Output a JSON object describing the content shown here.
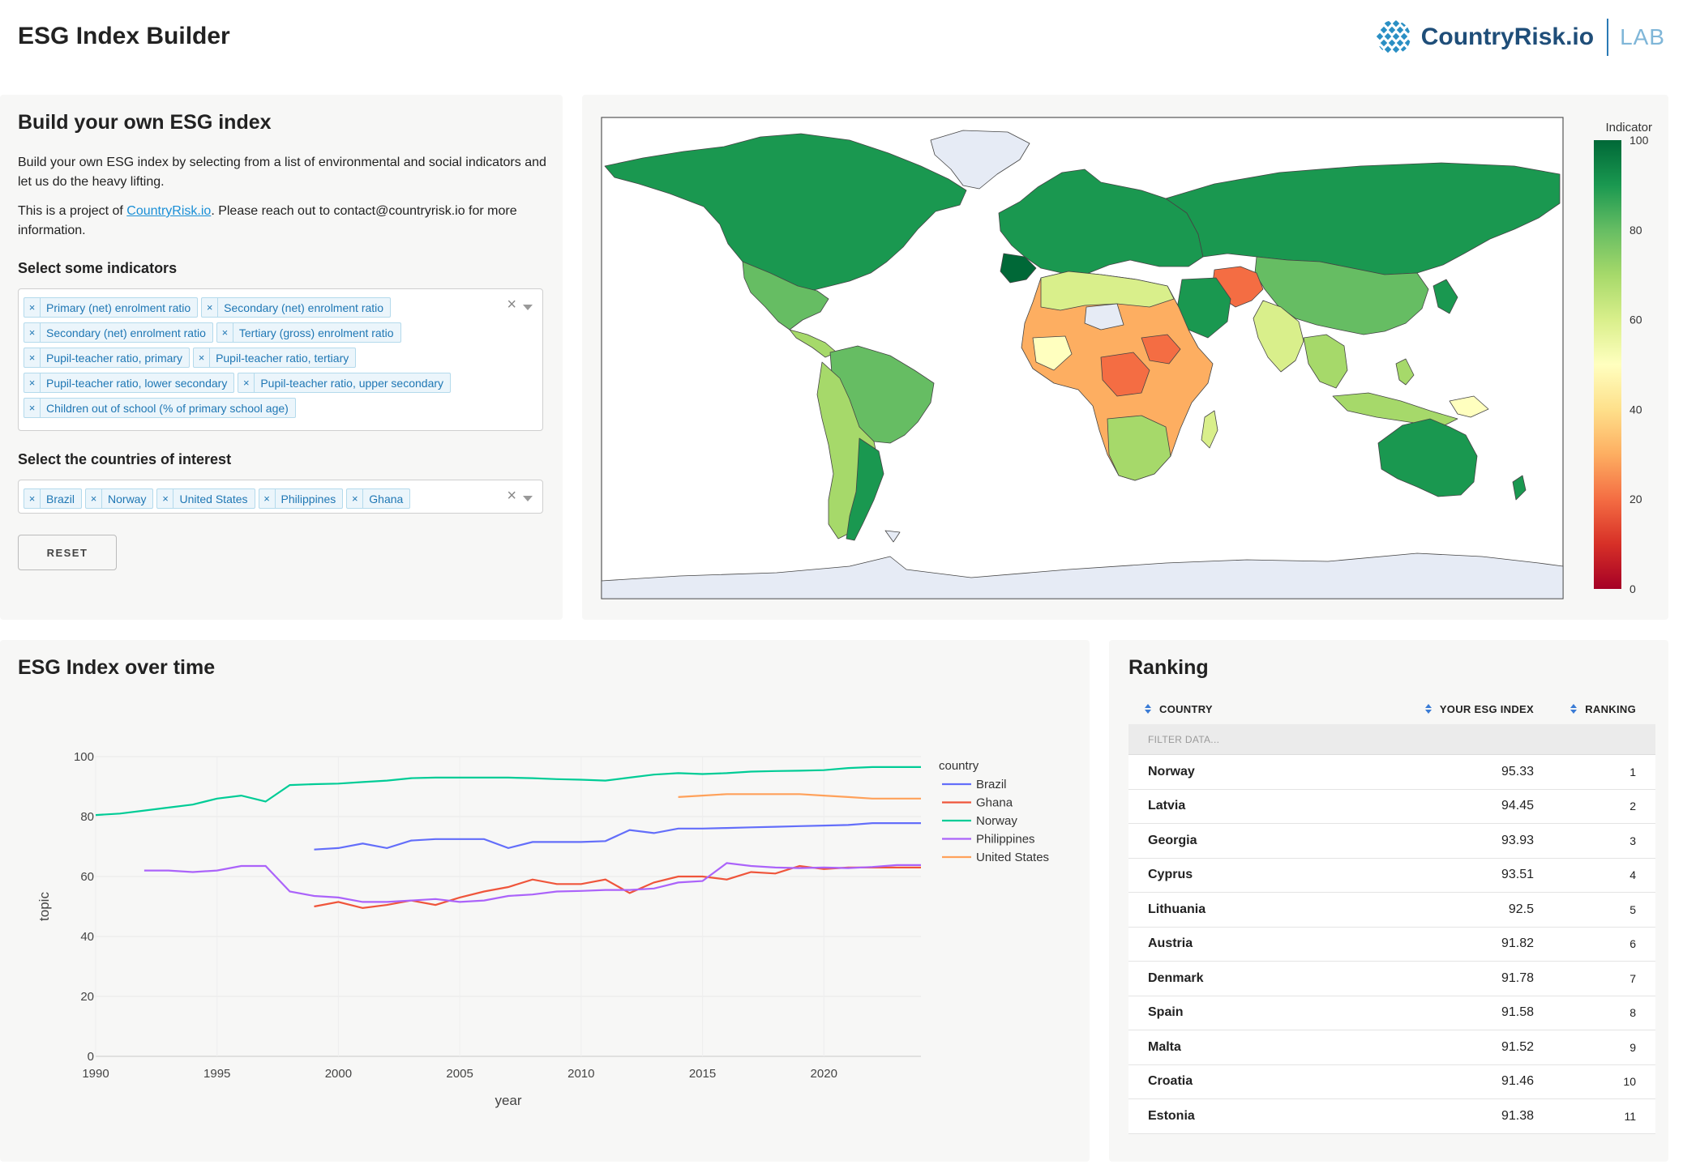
{
  "header": {
    "title": "ESG Index Builder",
    "brand_name": "CountryRisk.io",
    "brand_suffix": "LAB"
  },
  "builder": {
    "title": "Build your own ESG index",
    "description": "Build your own ESG index by selecting from a list of environmental and social indicators and let us do the heavy lifting.",
    "project_prefix": "This is a project of ",
    "project_link": "CountryRisk.io",
    "project_suffix": ". Please reach out to contact@countryrisk.io for more information.",
    "indicators_label": "Select some indicators",
    "indicators": [
      "Primary (net) enrolment ratio",
      "Secondary (net) enrolment ratio",
      "Secondary (net) enrolment ratio",
      "Tertiary (gross) enrolment ratio",
      "Pupil-teacher ratio, primary",
      "Pupil-teacher ratio, tertiary",
      "Pupil-teacher ratio, lower secondary",
      "Pupil-teacher ratio, upper secondary",
      "Children out of school (% of primary school age)"
    ],
    "countries_label": "Select the countries of interest",
    "countries": [
      "Brazil",
      "Norway",
      "United States",
      "Philippines",
      "Ghana"
    ],
    "chip_remove": "×",
    "clear_all": "×",
    "reset_label": "RESET"
  },
  "map": {
    "colorbar_title": "Indicator",
    "colorbar_ticks": [
      0,
      20,
      40,
      60,
      80,
      100
    ],
    "colorscale": [
      "#a50026",
      "#d73027",
      "#f46d43",
      "#fdae61",
      "#fee08b",
      "#ffffbf",
      "#d9ef8b",
      "#a6d96a",
      "#66bd63",
      "#1a9850",
      "#006837"
    ]
  },
  "timeseries": {
    "title": "ESG Index over time",
    "chart_data": {
      "type": "line",
      "xlabel": "year",
      "ylabel": "topic",
      "xlim": [
        1990,
        2024
      ],
      "ylim": [
        0,
        100
      ],
      "x_ticks": [
        1990,
        1995,
        2000,
        2005,
        2010,
        2015,
        2020
      ],
      "y_ticks": [
        0,
        20,
        40,
        60,
        80,
        100
      ],
      "legend_title": "country",
      "legend_position": "right",
      "series": [
        {
          "name": "Brazil",
          "color": "#636efa",
          "x": [
            1999,
            2000,
            2001,
            2002,
            2003,
            2004,
            2005,
            2006,
            2007,
            2008,
            2009,
            2010,
            2011,
            2012,
            2013,
            2014,
            2015,
            2016,
            2017,
            2018,
            2019,
            2020,
            2021,
            2022,
            2023,
            2024
          ],
          "y": [
            69,
            69.5,
            71,
            69.5,
            72,
            72.5,
            72.5,
            72.5,
            69.5,
            71.5,
            71.5,
            71.5,
            71.8,
            75.5,
            74.5,
            76,
            76,
            76.2,
            76.4,
            76.6,
            76.8,
            77,
            77.2,
            77.8,
            77.8,
            77.8
          ]
        },
        {
          "name": "Ghana",
          "color": "#ef553b",
          "x": [
            1999,
            2000,
            2001,
            2002,
            2003,
            2004,
            2005,
            2006,
            2007,
            2008,
            2009,
            2010,
            2011,
            2012,
            2013,
            2014,
            2015,
            2016,
            2017,
            2018,
            2019,
            2020,
            2021,
            2022,
            2023,
            2024
          ],
          "y": [
            50,
            51.5,
            49.5,
            50.5,
            52,
            50.5,
            53,
            55,
            56.5,
            59,
            57.5,
            57.5,
            59,
            54.5,
            58,
            60,
            60,
            59,
            61.5,
            61,
            63.5,
            62.5,
            63,
            63,
            63,
            63
          ]
        },
        {
          "name": "Norway",
          "color": "#00cc96",
          "x": [
            1990,
            1991,
            1992,
            1993,
            1994,
            1995,
            1996,
            1997,
            1998,
            1999,
            2000,
            2001,
            2002,
            2003,
            2004,
            2005,
            2006,
            2007,
            2008,
            2009,
            2010,
            2011,
            2012,
            2013,
            2014,
            2015,
            2016,
            2017,
            2018,
            2019,
            2020,
            2021,
            2022,
            2023,
            2024
          ],
          "y": [
            80.5,
            81,
            82,
            83,
            84,
            86,
            87,
            85,
            90.5,
            90.8,
            91,
            91.5,
            92,
            92.8,
            93,
            93,
            93,
            93,
            92.8,
            92.5,
            92.3,
            92,
            93,
            94,
            94.5,
            94.2,
            94.5,
            95,
            95.2,
            95.3,
            95.5,
            96.2,
            96.5,
            96.5,
            96.5
          ]
        },
        {
          "name": "Philippines",
          "color": "#ab63fa",
          "x": [
            1992,
            1993,
            1994,
            1995,
            1996,
            1997,
            1998,
            1999,
            2000,
            2001,
            2002,
            2003,
            2004,
            2005,
            2006,
            2007,
            2008,
            2009,
            2010,
            2011,
            2012,
            2013,
            2014,
            2015,
            2016,
            2017,
            2018,
            2019,
            2020,
            2021,
            2022,
            2023,
            2024
          ],
          "y": [
            62,
            62,
            61.5,
            62,
            63.5,
            63.5,
            55,
            53.5,
            53,
            51.5,
            51.5,
            52,
            52.5,
            51.5,
            52,
            53.5,
            54,
            55,
            55.2,
            55.5,
            55.5,
            56,
            58,
            58.5,
            64.5,
            63.5,
            63,
            62.8,
            63,
            62.8,
            63.2,
            63.8,
            63.8
          ]
        },
        {
          "name": "United States",
          "color": "#ffa15a",
          "x": [
            2014,
            2015,
            2016,
            2017,
            2018,
            2019,
            2020,
            2021,
            2022,
            2023,
            2024
          ],
          "y": [
            86.5,
            87,
            87.5,
            87.5,
            87.5,
            87.5,
            87,
            86.5,
            86,
            86,
            86
          ]
        }
      ]
    }
  },
  "ranking": {
    "title": "Ranking",
    "columns": [
      "COUNTRY",
      "YOUR ESG INDEX",
      "RANKING"
    ],
    "filter_placeholder": "FILTER DATA...",
    "rows": [
      {
        "country": "Norway",
        "index": "95.33",
        "rank": "1"
      },
      {
        "country": "Latvia",
        "index": "94.45",
        "rank": "2"
      },
      {
        "country": "Georgia",
        "index": "93.93",
        "rank": "3"
      },
      {
        "country": "Cyprus",
        "index": "93.51",
        "rank": "4"
      },
      {
        "country": "Lithuania",
        "index": "92.5",
        "rank": "5"
      },
      {
        "country": "Austria",
        "index": "91.82",
        "rank": "6"
      },
      {
        "country": "Denmark",
        "index": "91.78",
        "rank": "7"
      },
      {
        "country": "Spain",
        "index": "91.58",
        "rank": "8"
      },
      {
        "country": "Malta",
        "index": "91.52",
        "rank": "9"
      },
      {
        "country": "Croatia",
        "index": "91.46",
        "rank": "10"
      },
      {
        "country": "Estonia",
        "index": "91.38",
        "rank": "11"
      }
    ]
  }
}
